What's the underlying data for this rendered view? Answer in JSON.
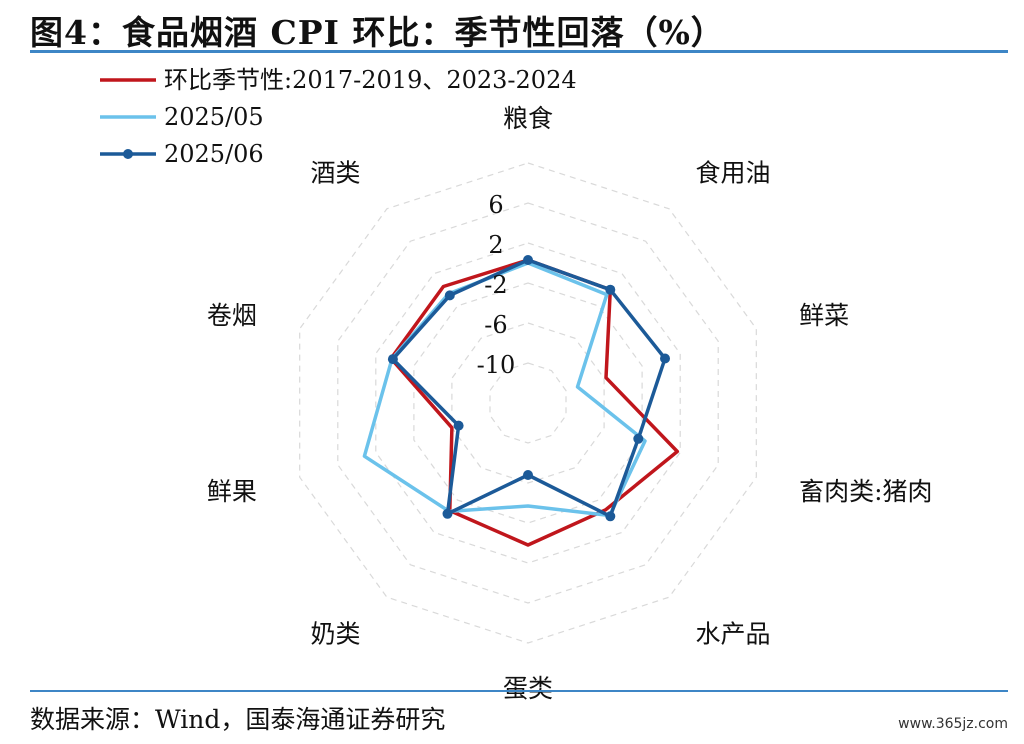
{
  "title": "图4：食品烟酒 CPI 环比：季节性回落（%）",
  "source": "数据来源：Wind，国泰海通证券研究",
  "watermark": "www.365jz.com",
  "chart_data": {
    "type": "radar",
    "categories": [
      "粮食",
      "食用油",
      "鲜菜",
      "畜肉类:猪肉",
      "水产品",
      "蛋类",
      "奶类",
      "鲜果",
      "卷烟",
      "酒类"
    ],
    "r_ticks": [
      6,
      2,
      -2,
      -6,
      -10
    ],
    "r_range": [
      -14,
      10
    ],
    "grid": true,
    "legend_position": "top-left",
    "series": [
      {
        "name": "环比季节性:2017-2019、2023-2024",
        "color": "#c0161c",
        "marker": false,
        "values": [
          0.3,
          0.0,
          -5.8,
          1.7,
          -0.8,
          0.2,
          -0.7,
          -6.0,
          0.4,
          0.4
        ]
      },
      {
        "name": "2025/05",
        "color": "#6bc2eb",
        "marker": false,
        "values": [
          0.0,
          -0.6,
          -8.8,
          -1.7,
          -0.1,
          -3.7,
          -0.6,
          3.2,
          0.3,
          -0.5
        ]
      },
      {
        "name": "2025/06",
        "color": "#1c5a98",
        "marker": true,
        "values": [
          0.3,
          0.0,
          0.4,
          -2.4,
          0.0,
          -6.8,
          -0.3,
          -6.7,
          0.2,
          -0.7
        ]
      }
    ]
  }
}
